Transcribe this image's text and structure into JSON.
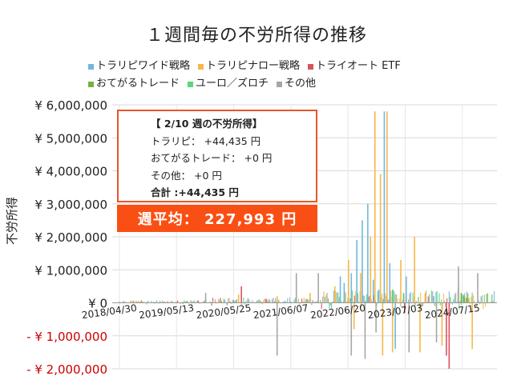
{
  "title": "１週間毎の不労所得の推移",
  "legend": [
    {
      "name": "トラリピワイド戦略",
      "color": "#6fb8df"
    },
    {
      "name": "トラリピナロー戦略",
      "color": "#f5b849"
    },
    {
      "name": "トライオート ETF",
      "color": "#d9535b"
    },
    {
      "name": "おてがるトレード",
      "color": "#77b043"
    },
    {
      "name": "ユーロ／ズロチ",
      "color": "#5ed37e"
    },
    {
      "name": "その他",
      "color": "#a6a6a6"
    }
  ],
  "info_box": {
    "heading": "【 2/10 週の不労所得】",
    "rows": [
      "トラリピ： +44,435 円",
      "おてがるトレード： +0 円",
      "その他： +0 円"
    ],
    "total": "合計 :+44,435 円"
  },
  "average": "週平均： 227,993 円",
  "chart_data": {
    "type": "bar",
    "ylabel": "不労所得",
    "ylim": [
      -2000000,
      6000000
    ],
    "y_ticks": [
      {
        "value": 6000000,
        "label": "¥ 6,000,000",
        "color": "#222222"
      },
      {
        "value": 5000000,
        "label": "¥ 5,000,000",
        "color": "#222222"
      },
      {
        "value": 4000000,
        "label": "¥ 4,000,000",
        "color": "#222222"
      },
      {
        "value": 3000000,
        "label": "¥ 3,000,000",
        "color": "#222222"
      },
      {
        "value": 2000000,
        "label": "¥ 2,000,000",
        "color": "#222222"
      },
      {
        "value": 1000000,
        "label": "¥ 1,000,000",
        "color": "#222222"
      },
      {
        "value": 0,
        "label": "¥ 0",
        "color": "#222222"
      },
      {
        "value": -1000000,
        "label": "- ¥ 1,000,000",
        "color": "#cc0000"
      },
      {
        "value": -2000000,
        "label": "- ¥ 2,000,000",
        "color": "#cc0000"
      }
    ],
    "x_tick_labels": [
      "2018/04/30",
      "2019/05/13",
      "2020/05/25",
      "2021/06/07",
      "2022/06/20",
      "2023/07/03",
      "2024/07/15"
    ],
    "grid": true,
    "legend_position": "top",
    "series": [
      {
        "name": "トラリピワイド戦略",
        "color": "#6fb8df",
        "values": [
          [
            2022.35,
            800000
          ],
          [
            2022.42,
            600000
          ],
          [
            2022.55,
            900000
          ],
          [
            2022.65,
            1900000
          ],
          [
            2022.75,
            2500000
          ],
          [
            2022.85,
            3000000
          ],
          [
            2022.95,
            700000
          ],
          [
            2023.05,
            400000
          ],
          [
            2023.15,
            5800000
          ],
          [
            2023.25,
            1200000
          ],
          [
            2023.35,
            -1400000
          ],
          [
            2023.55,
            800000
          ],
          [
            2024.05,
            200000
          ]
        ]
      },
      {
        "name": "トラリピナロー戦略",
        "color": "#f5b849",
        "values": [
          [
            2022.25,
            500000
          ],
          [
            2022.5,
            1300000
          ],
          [
            2022.6,
            -800000
          ],
          [
            2022.72,
            900000
          ],
          [
            2022.9,
            2000000
          ],
          [
            2022.98,
            5800000
          ],
          [
            2023.08,
            3900000
          ],
          [
            2023.12,
            -1600000
          ],
          [
            2023.2,
            5800000
          ],
          [
            2023.3,
            -1500000
          ],
          [
            2023.45,
            1300000
          ],
          [
            2023.6,
            -1400000
          ],
          [
            2023.7,
            2000000
          ],
          [
            2023.8,
            -1500000
          ],
          [
            2023.9,
            300000
          ],
          [
            2024.2,
            -1300000
          ],
          [
            2024.5,
            500000
          ],
          [
            2024.75,
            -1400000
          ],
          [
            2020.5,
            250000
          ],
          [
            2021.2,
            200000
          ],
          [
            2021.8,
            300000
          ]
        ]
      },
      {
        "name": "トライオート ETF",
        "color": "#d9535b",
        "values": [
          [
            2020.55,
            500000
          ],
          [
            2023.52,
            -300000
          ],
          [
            2024.28,
            -1600000
          ],
          [
            2024.33,
            -2000000
          ]
        ]
      },
      {
        "name": "おてがるトレード",
        "color": "#77b043",
        "values": [
          [
            2024.55,
            300000
          ],
          [
            2024.6,
            200000
          ],
          [
            2024.65,
            150000
          ]
        ]
      },
      {
        "name": "ユーロ／ズロチ",
        "color": "#5ed37e",
        "values": [
          [
            2023.3,
            400000
          ],
          [
            2023.5,
            300000
          ]
        ]
      },
      {
        "name": "その他",
        "color": "#a6a6a6",
        "values": [
          [
            2019.9,
            300000
          ],
          [
            2021.2,
            -1600000
          ],
          [
            2021.55,
            900000
          ],
          [
            2021.95,
            900000
          ],
          [
            2022.55,
            -1600000
          ],
          [
            2022.8,
            -1700000
          ],
          [
            2023.0,
            -900000
          ],
          [
            2023.6,
            -1500000
          ],
          [
            2024.1,
            -1200000
          ],
          [
            2024.5,
            1100000
          ],
          [
            2024.85,
            900000
          ]
        ]
      }
    ]
  }
}
